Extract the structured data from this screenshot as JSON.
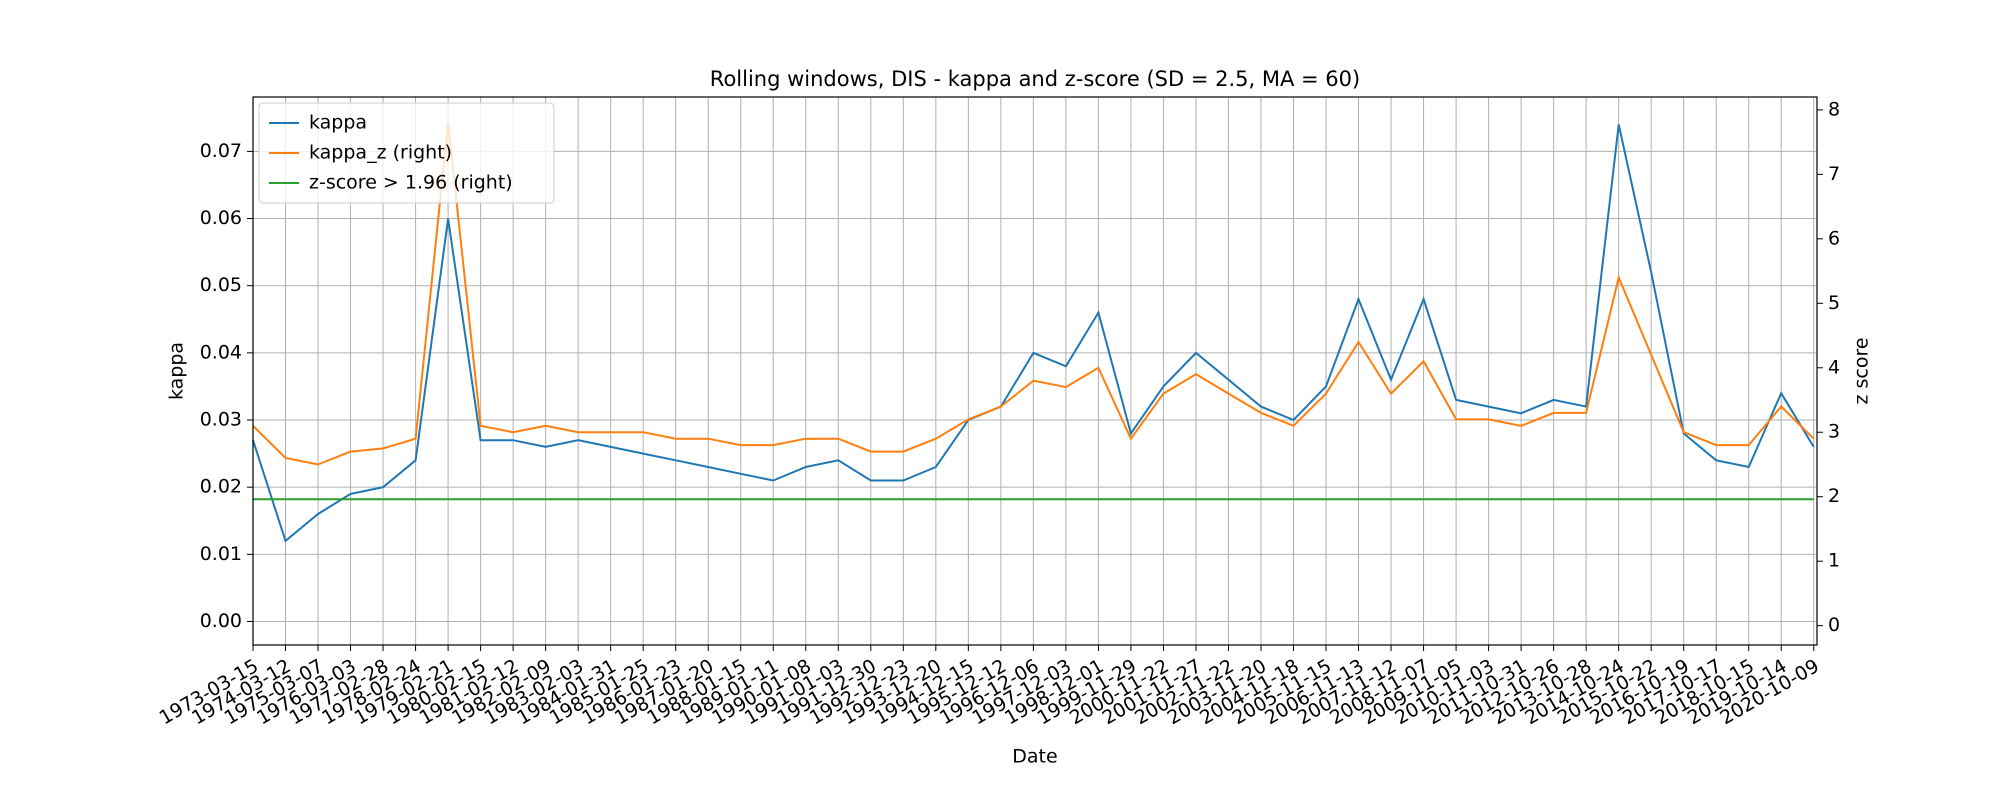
{
  "chart_data": {
    "type": "line",
    "title": "Rolling windows, DIS - kappa and z-score (SD = 2.5, MA = 60)",
    "xlabel": "Date",
    "ylabel": "kappa",
    "y2label": "z score",
    "x": [
      "1973-03-15",
      "1974-03-12",
      "1975-03-07",
      "1976-03-03",
      "1977-02-28",
      "1978-02-24",
      "1979-02-21",
      "1980-02-15",
      "1981-02-12",
      "1982-02-09",
      "1983-02-03",
      "1984-01-31",
      "1985-01-25",
      "1986-01-23",
      "1987-01-20",
      "1988-01-15",
      "1989-01-11",
      "1990-01-08",
      "1991-01-03",
      "1991-12-30",
      "1992-12-23",
      "1993-12-20",
      "1994-12-15",
      "1995-12-12",
      "1996-12-06",
      "1997-12-03",
      "1998-12-01",
      "1999-11-29",
      "2000-11-22",
      "2001-11-27",
      "2002-11-22",
      "2003-11-20",
      "2004-11-18",
      "2005-11-15",
      "2006-11-13",
      "2007-11-12",
      "2008-11-07",
      "2009-11-05",
      "2010-11-03",
      "2011-10-31",
      "2012-10-26",
      "2013-10-28",
      "2014-10-24",
      "2015-10-22",
      "2016-10-19",
      "2017-10-17",
      "2018-10-15",
      "2019-10-14",
      "2020-10-09"
    ],
    "series": [
      {
        "name": "kappa",
        "color": "#1f77b4",
        "axis": "y",
        "values": [
          0.027,
          0.012,
          0.016,
          0.019,
          0.02,
          0.024,
          0.06,
          0.027,
          0.027,
          0.026,
          0.027,
          0.026,
          0.025,
          0.024,
          0.023,
          0.022,
          0.021,
          0.023,
          0.024,
          0.021,
          0.021,
          0.023,
          0.03,
          0.032,
          0.04,
          0.038,
          0.046,
          0.028,
          0.035,
          0.04,
          0.036,
          0.032,
          0.03,
          0.035,
          0.048,
          0.036,
          0.048,
          0.033,
          0.032,
          0.031,
          0.033,
          0.032,
          0.074,
          0.052,
          0.028,
          0.024,
          0.023,
          0.034,
          0.026
        ]
      },
      {
        "name": "kappa_z (right)",
        "color": "#ff7f0e",
        "axis": "y2",
        "values": [
          3.1,
          2.6,
          2.5,
          2.7,
          2.75,
          2.9,
          7.8,
          3.1,
          3.0,
          3.1,
          3.0,
          3.0,
          3.0,
          2.9,
          2.9,
          2.8,
          2.8,
          2.9,
          2.9,
          2.7,
          2.7,
          2.9,
          3.2,
          3.4,
          3.8,
          3.7,
          4.0,
          2.9,
          3.6,
          3.9,
          3.6,
          3.3,
          3.1,
          3.6,
          4.4,
          3.6,
          4.1,
          3.2,
          3.2,
          3.1,
          3.3,
          3.3,
          5.4,
          4.2,
          3.0,
          2.8,
          2.8,
          3.4,
          2.9
        ]
      },
      {
        "name": "z-score > 1.96 (right)",
        "color": "#2ca02c",
        "axis": "y2",
        "values": [
          1.96,
          1.96,
          1.96,
          1.96,
          1.96,
          1.96,
          1.96,
          1.96,
          1.96,
          1.96,
          1.96,
          1.96,
          1.96,
          1.96,
          1.96,
          1.96,
          1.96,
          1.96,
          1.96,
          1.96,
          1.96,
          1.96,
          1.96,
          1.96,
          1.96,
          1.96,
          1.96,
          1.96,
          1.96,
          1.96,
          1.96,
          1.96,
          1.96,
          1.96,
          1.96,
          1.96,
          1.96,
          1.96,
          1.96,
          1.96,
          1.96,
          1.96,
          1.96,
          1.96,
          1.96,
          1.96,
          1.96,
          1.96,
          1.96
        ]
      }
    ],
    "ylim": [
      -0.0035,
      0.0781
    ],
    "yticks": [
      {
        "value": 0,
        "label": "0.00"
      },
      {
        "value": 0.01,
        "label": "0.01"
      },
      {
        "value": 0.02,
        "label": "0.02"
      },
      {
        "value": 0.03,
        "label": "0.03"
      },
      {
        "value": 0.04,
        "label": "0.04"
      },
      {
        "value": 0.05,
        "label": "0.05"
      },
      {
        "value": 0.06,
        "label": "0.06"
      },
      {
        "value": 0.07,
        "label": "0.07"
      }
    ],
    "y2lim": [
      -0.3,
      8.2
    ],
    "y2ticks": [
      0,
      1,
      2,
      3,
      4,
      5,
      6,
      7,
      8
    ],
    "grid": true,
    "legend": "upper left"
  }
}
